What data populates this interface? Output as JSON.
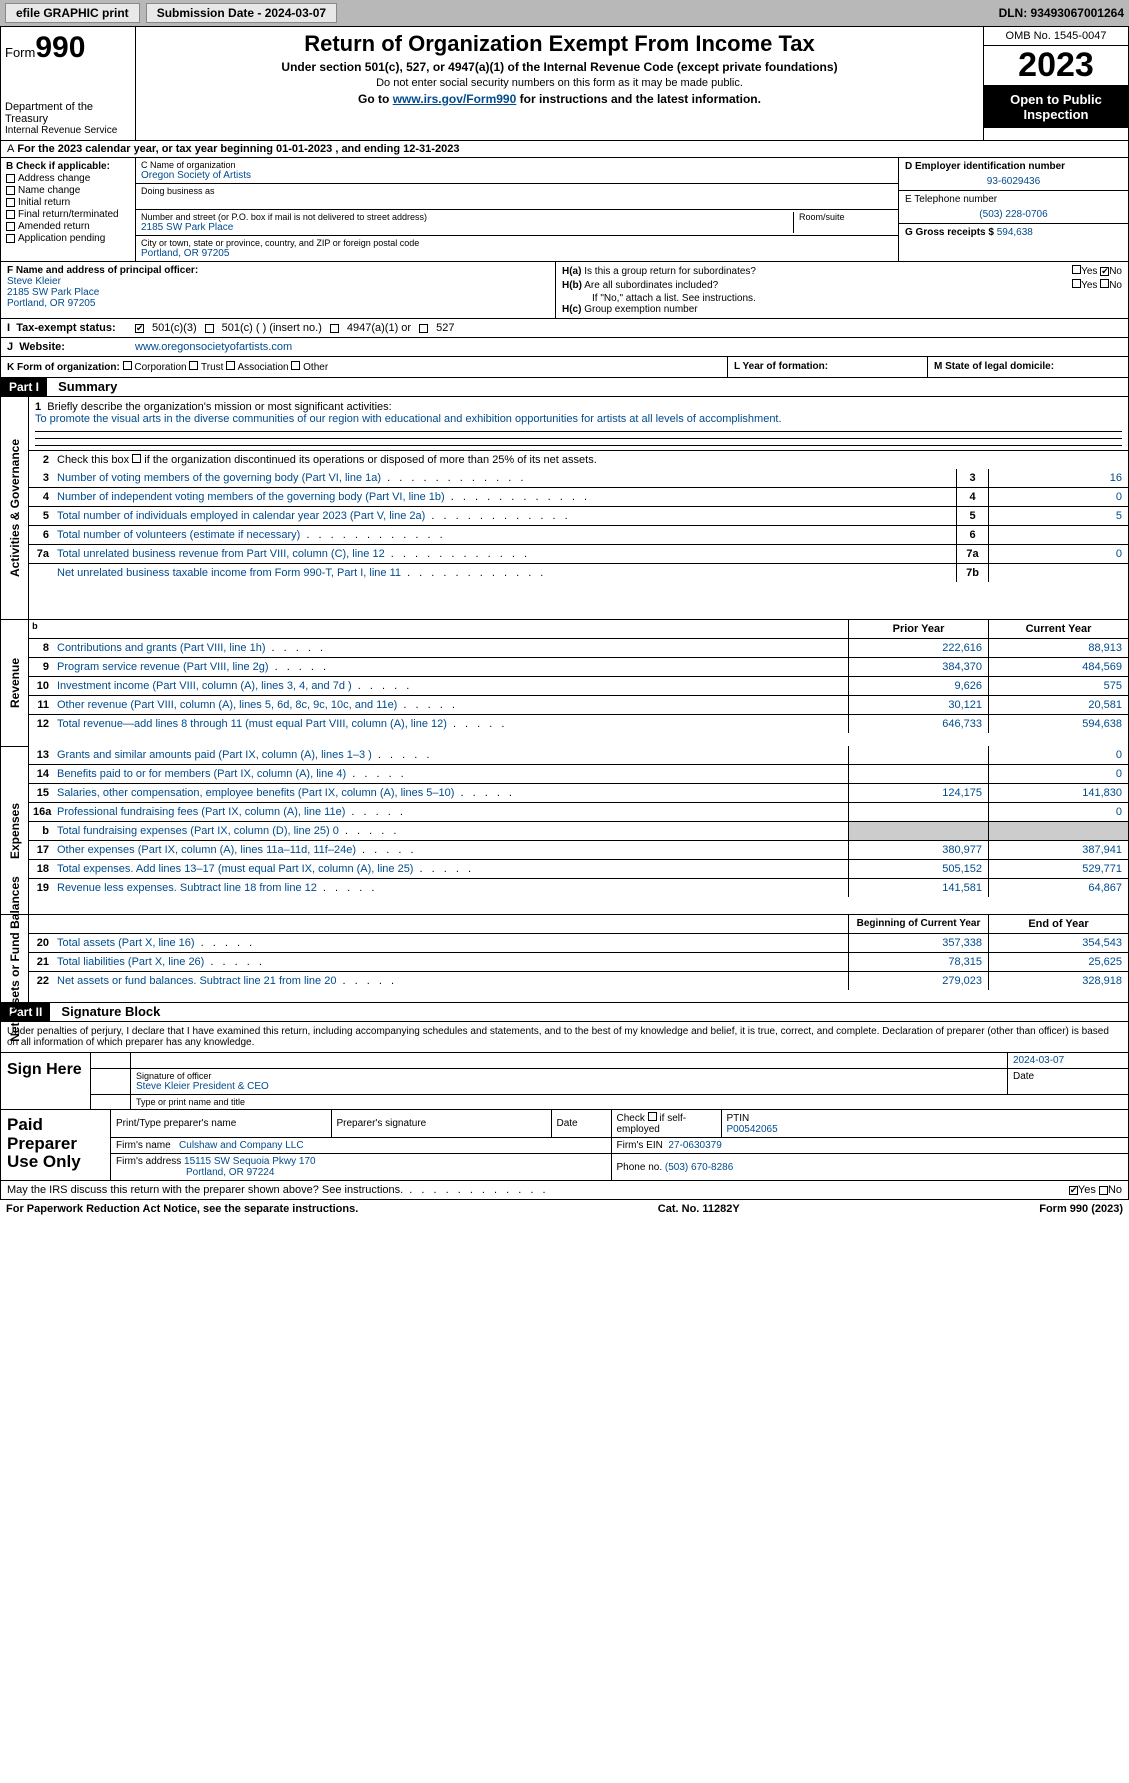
{
  "topbar": {
    "efile": "efile GRAPHIC print",
    "submission": "Submission Date - 2024-03-07",
    "dln": "DLN: 93493067001264"
  },
  "header": {
    "form_label": "Form",
    "form_num": "990",
    "dept": "Department of the Treasury",
    "irs": "Internal Revenue Service",
    "title": "Return of Organization Exempt From Income Tax",
    "sub1": "Under section 501(c), 527, or 4947(a)(1) of the Internal Revenue Code (except private foundations)",
    "sub2": "Do not enter social security numbers on this form as it may be made public.",
    "sub3_pre": "Go to ",
    "sub3_link": "www.irs.gov/Form990",
    "sub3_post": " for instructions and the latest information.",
    "omb": "OMB No. 1545-0047",
    "year": "2023",
    "open": "Open to Public Inspection"
  },
  "line_a": "For the 2023 calendar year, or tax year beginning 01-01-2023    , and ending 12-31-2023",
  "box_b": {
    "label": "B Check if applicable:",
    "items": [
      "Address change",
      "Name change",
      "Initial return",
      "Final return/terminated",
      "Amended return",
      "Application pending"
    ]
  },
  "box_c": {
    "name_lbl": "C Name of organization",
    "name": "Oregon Society of Artists",
    "dba_lbl": "Doing business as",
    "addr_lbl": "Number and street (or P.O. box if mail is not delivered to street address)",
    "room_lbl": "Room/suite",
    "addr": "2185 SW Park Place",
    "city_lbl": "City or town, state or province, country, and ZIP or foreign postal code",
    "city": "Portland, OR  97205"
  },
  "box_de": {
    "d_lbl": "D Employer identification number",
    "d_val": "93-6029436",
    "e_lbl": "E Telephone number",
    "e_val": "(503) 228-0706",
    "g_lbl": "G Gross receipts $",
    "g_val": "594,638"
  },
  "box_f": {
    "lbl": "F Name and address of principal officer:",
    "name": "Steve Kleier",
    "addr1": "2185 SW Park Place",
    "addr2": "Portland, OR  97205"
  },
  "box_h": {
    "ha_lbl": "H(a)",
    "ha_txt": "Is this a group return for subordinates?",
    "hb_lbl": "H(b)",
    "hb_txt": "Are all subordinates included?",
    "hb_note": "If \"No,\" attach a list. See instructions.",
    "hc_lbl": "H(c)",
    "hc_txt": "Group exemption number",
    "yes": "Yes",
    "no": "No"
  },
  "row_i": {
    "lbl": "Tax-exempt status:",
    "opt1": "501(c)(3)",
    "opt2": "501(c) (  ) (insert no.)",
    "opt3": "4947(a)(1) or",
    "opt4": "527"
  },
  "row_j": {
    "lbl": "Website:",
    "val": "www.oregonsocietyofartists.com"
  },
  "row_k": {
    "lbl": "K Form of organization:",
    "opts": [
      "Corporation",
      "Trust",
      "Association",
      "Other"
    ]
  },
  "row_l": "L Year of formation:",
  "row_m": "M State of legal domicile:",
  "part1": {
    "tag": "Part I",
    "title": "Summary"
  },
  "mission": {
    "num": "1",
    "lbl": "Briefly describe the organization's mission or most significant activities:",
    "txt": "To promote the visual arts in the diverse communities of our region with educational and exhibition opportunities for artists at all levels of accomplishment."
  },
  "line2": {
    "num": "2",
    "txt": "Check this box     if the organization discontinued its operations or disposed of more than 25% of its net assets."
  },
  "gov_lines": [
    {
      "num": "3",
      "txt": "Number of voting members of the governing body (Part VI, line 1a)",
      "box": "3",
      "val": "16"
    },
    {
      "num": "4",
      "txt": "Number of independent voting members of the governing body (Part VI, line 1b)",
      "box": "4",
      "val": "0"
    },
    {
      "num": "5",
      "txt": "Total number of individuals employed in calendar year 2023 (Part V, line 2a)",
      "box": "5",
      "val": "5"
    },
    {
      "num": "6",
      "txt": "Total number of volunteers (estimate if necessary)",
      "box": "6",
      "val": ""
    },
    {
      "num": "7a",
      "txt": "Total unrelated business revenue from Part VIII, column (C), line 12",
      "box": "7a",
      "val": "0"
    },
    {
      "num": "",
      "txt": "Net unrelated business taxable income from Form 990-T, Part I, line 11",
      "box": "7b",
      "val": ""
    }
  ],
  "side_labels": {
    "gov": "Activities & Governance",
    "rev": "Revenue",
    "exp": "Expenses",
    "net": "Net Assets or Fund Balances"
  },
  "col_hdrs": {
    "prior": "Prior Year",
    "current": "Current Year",
    "beg": "Beginning of Current Year",
    "end": "End of Year"
  },
  "rev_lines": [
    {
      "num": "8",
      "txt": "Contributions and grants (Part VIII, line 1h)",
      "prior": "222,616",
      "curr": "88,913"
    },
    {
      "num": "9",
      "txt": "Program service revenue (Part VIII, line 2g)",
      "prior": "384,370",
      "curr": "484,569"
    },
    {
      "num": "10",
      "txt": "Investment income (Part VIII, column (A), lines 3, 4, and 7d )",
      "prior": "9,626",
      "curr": "575"
    },
    {
      "num": "11",
      "txt": "Other revenue (Part VIII, column (A), lines 5, 6d, 8c, 9c, 10c, and 11e)",
      "prior": "30,121",
      "curr": "20,581"
    },
    {
      "num": "12",
      "txt": "Total revenue—add lines 8 through 11 (must equal Part VIII, column (A), line 12)",
      "prior": "646,733",
      "curr": "594,638"
    }
  ],
  "exp_lines": [
    {
      "num": "13",
      "txt": "Grants and similar amounts paid (Part IX, column (A), lines 1–3 )",
      "prior": "",
      "curr": "0"
    },
    {
      "num": "14",
      "txt": "Benefits paid to or for members (Part IX, column (A), line 4)",
      "prior": "",
      "curr": "0"
    },
    {
      "num": "15",
      "txt": "Salaries, other compensation, employee benefits (Part IX, column (A), lines 5–10)",
      "prior": "124,175",
      "curr": "141,830"
    },
    {
      "num": "16a",
      "txt": "Professional fundraising fees (Part IX, column (A), line 11e)",
      "prior": "",
      "curr": "0"
    },
    {
      "num": "b",
      "txt": "Total fundraising expenses (Part IX, column (D), line 25) 0",
      "prior": "SHADE",
      "curr": "SHADE"
    },
    {
      "num": "17",
      "txt": "Other expenses (Part IX, column (A), lines 11a–11d, 11f–24e)",
      "prior": "380,977",
      "curr": "387,941"
    },
    {
      "num": "18",
      "txt": "Total expenses. Add lines 13–17 (must equal Part IX, column (A), line 25)",
      "prior": "505,152",
      "curr": "529,771"
    },
    {
      "num": "19",
      "txt": "Revenue less expenses. Subtract line 18 from line 12",
      "prior": "141,581",
      "curr": "64,867"
    }
  ],
  "net_lines": [
    {
      "num": "20",
      "txt": "Total assets (Part X, line 16)",
      "prior": "357,338",
      "curr": "354,543"
    },
    {
      "num": "21",
      "txt": "Total liabilities (Part X, line 26)",
      "prior": "78,315",
      "curr": "25,625"
    },
    {
      "num": "22",
      "txt": "Net assets or fund balances. Subtract line 21 from line 20",
      "prior": "279,023",
      "curr": "328,918"
    }
  ],
  "part2": {
    "tag": "Part II",
    "title": "Signature Block"
  },
  "perjury": "Under penalties of perjury, I declare that I have examined this return, including accompanying schedules and statements, and to the best of my knowledge and belief, it is true, correct, and complete. Declaration of preparer (other than officer) is based on all information of which preparer has any knowledge.",
  "sign": {
    "here": "Sign Here",
    "sig_lbl": "Signature of officer",
    "date": "2024-03-07",
    "name": "Steve Kleier  President & CEO",
    "name_lbl": "Type or print name and title"
  },
  "paid": {
    "here": "Paid Preparer Use Only",
    "h1": "Print/Type preparer's name",
    "h2": "Preparer's signature",
    "h3": "Date",
    "h4_pre": "Check",
    "h4_post": "if self-employed",
    "h5": "PTIN",
    "ptin": "P00542065",
    "firm_lbl": "Firm's name",
    "firm": "Culshaw and Company LLC",
    "ein_lbl": "Firm's EIN",
    "ein": "27-0630379",
    "addr_lbl": "Firm's address",
    "addr1": "15115 SW Sequoia Pkwy 170",
    "addr2": "Portland, OR  97224",
    "phone_lbl": "Phone no.",
    "phone": "(503) 670-8286"
  },
  "discuss": "May the IRS discuss this return with the preparer shown above? See instructions.",
  "footer": {
    "l": "For Paperwork Reduction Act Notice, see the separate instructions.",
    "c": "Cat. No. 11282Y",
    "r": "Form 990 (2023)"
  }
}
